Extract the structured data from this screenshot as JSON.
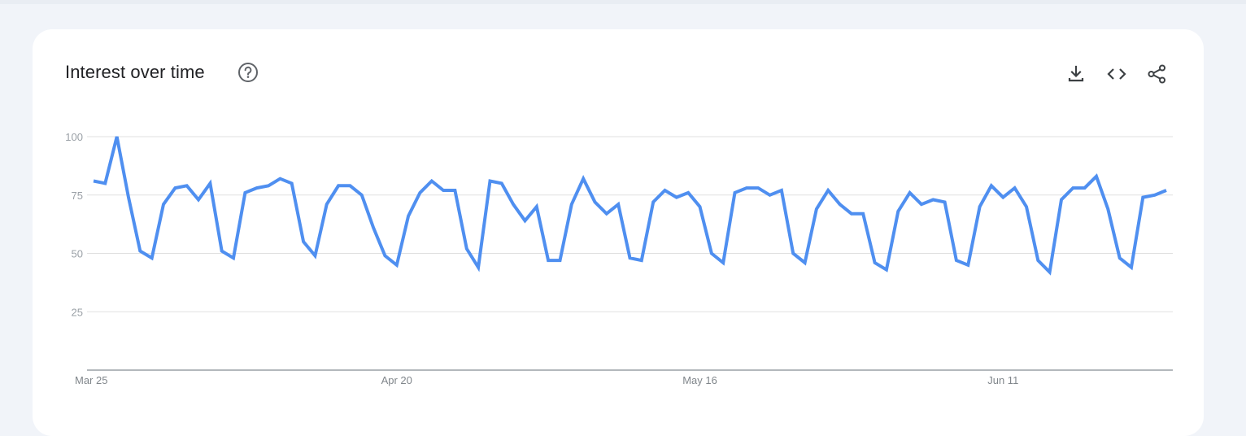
{
  "card": {
    "title": "Interest over time"
  },
  "icons": {
    "help": "help-circle-icon",
    "download": "download-icon",
    "embed": "code-embed-icon",
    "share": "share-icon"
  },
  "colors": {
    "line": "#4f8ff0",
    "grid": "#e0e0e0",
    "axis": "#9aa0a6"
  },
  "chart_data": {
    "type": "line",
    "title": "",
    "xlabel": "",
    "ylabel": "",
    "ylim": [
      0,
      100
    ],
    "y_ticks": [
      "100",
      "75",
      "50",
      "25"
    ],
    "y_tick_values": [
      100,
      75,
      50,
      25
    ],
    "x_tick_labels": [
      {
        "index": 0,
        "label": "Mar 25"
      },
      {
        "index": 26,
        "label": "Apr 20"
      },
      {
        "index": 52,
        "label": "May 16"
      },
      {
        "index": 78,
        "label": "Jun 11"
      }
    ],
    "grid": true,
    "series": [
      {
        "values": [
          81,
          80,
          100,
          74,
          51,
          48,
          71,
          78,
          79,
          73,
          80,
          51,
          48,
          76,
          78,
          79,
          82,
          80,
          55,
          49,
          71,
          79,
          79,
          75,
          61,
          49,
          45,
          66,
          76,
          81,
          77,
          77,
          52,
          44,
          81,
          80,
          71,
          64,
          70,
          47,
          47,
          71,
          82,
          72,
          67,
          71,
          48,
          47,
          72,
          77,
          74,
          76,
          70,
          50,
          46,
          76,
          78,
          78,
          75,
          77,
          50,
          46,
          69,
          77,
          71,
          67,
          67,
          46,
          43,
          68,
          76,
          71,
          73,
          72,
          47,
          45,
          70,
          79,
          74,
          78,
          70,
          47,
          42,
          73,
          78,
          78,
          83,
          69,
          48,
          44,
          74,
          75,
          77
        ]
      }
    ]
  }
}
